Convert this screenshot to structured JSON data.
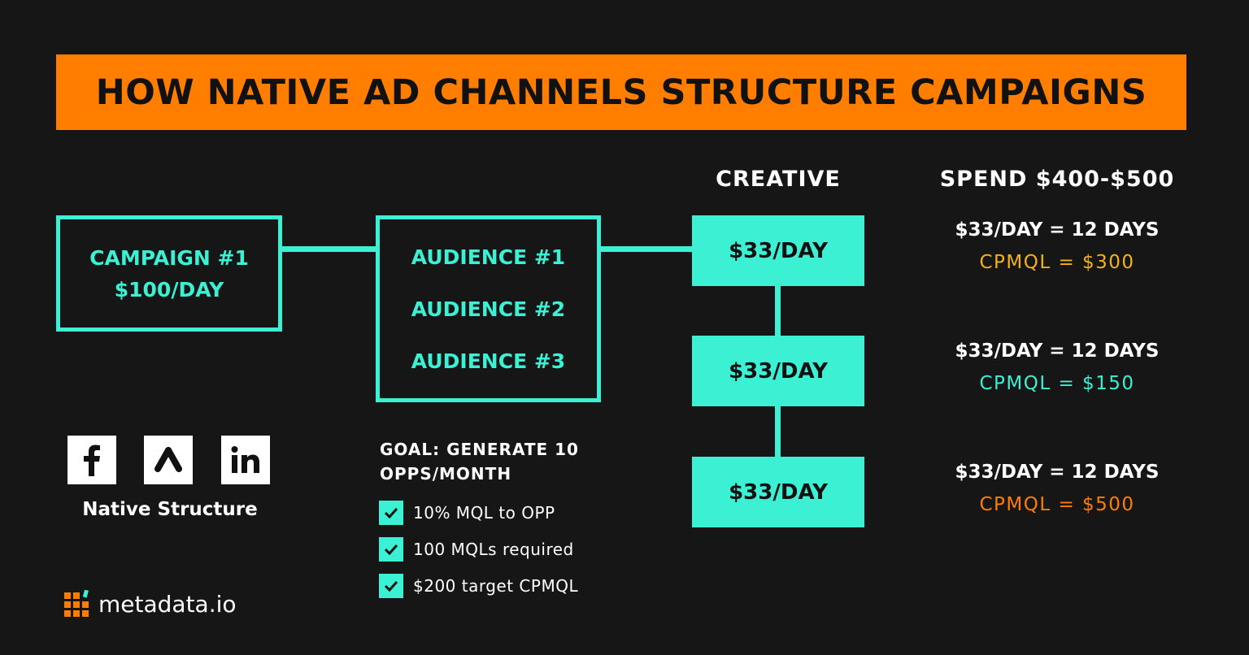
{
  "title": "HOW NATIVE AD CHANNELS STRUCTURE CAMPAIGNS",
  "campaign": {
    "name": "CAMPAIGN #1",
    "budget": "$100/DAY"
  },
  "audiences": [
    "AUDIENCE #1",
    "AUDIENCE #2",
    "AUDIENCE #3"
  ],
  "creative_heading": "CREATIVE",
  "creatives": [
    "$33/DAY",
    "$33/DAY",
    "$33/DAY"
  ],
  "spend_heading": "SPEND $400-$500",
  "spend_rows": [
    {
      "rule": "$33/DAY = 12 DAYS",
      "cpmql": "CPMQL = $300",
      "color": "#F2B318"
    },
    {
      "rule": "$33/DAY = 12 DAYS",
      "cpmql": "CPMQL = $150",
      "color": "#3CF0D3"
    },
    {
      "rule": "$33/DAY = 12 DAYS",
      "cpmql": "CPMQL = $500",
      "color": "#FF7E00"
    }
  ],
  "social_icons": [
    "facebook-icon",
    "google-ads-icon",
    "linkedin-icon"
  ],
  "native_label": "Native Structure",
  "goal": {
    "line1": "GOAL: GENERATE 10",
    "line2": "OPPS/MONTH",
    "items": [
      "10% MQL to OPP",
      "100 MQLs required",
      "$200 target CPMQL"
    ]
  },
  "brand": {
    "name": "metadata.io",
    "icon": "metadata-logo-icon"
  },
  "colors": {
    "accent": "#3CF0D3",
    "banner": "#FF7E00",
    "background": "#161616"
  }
}
